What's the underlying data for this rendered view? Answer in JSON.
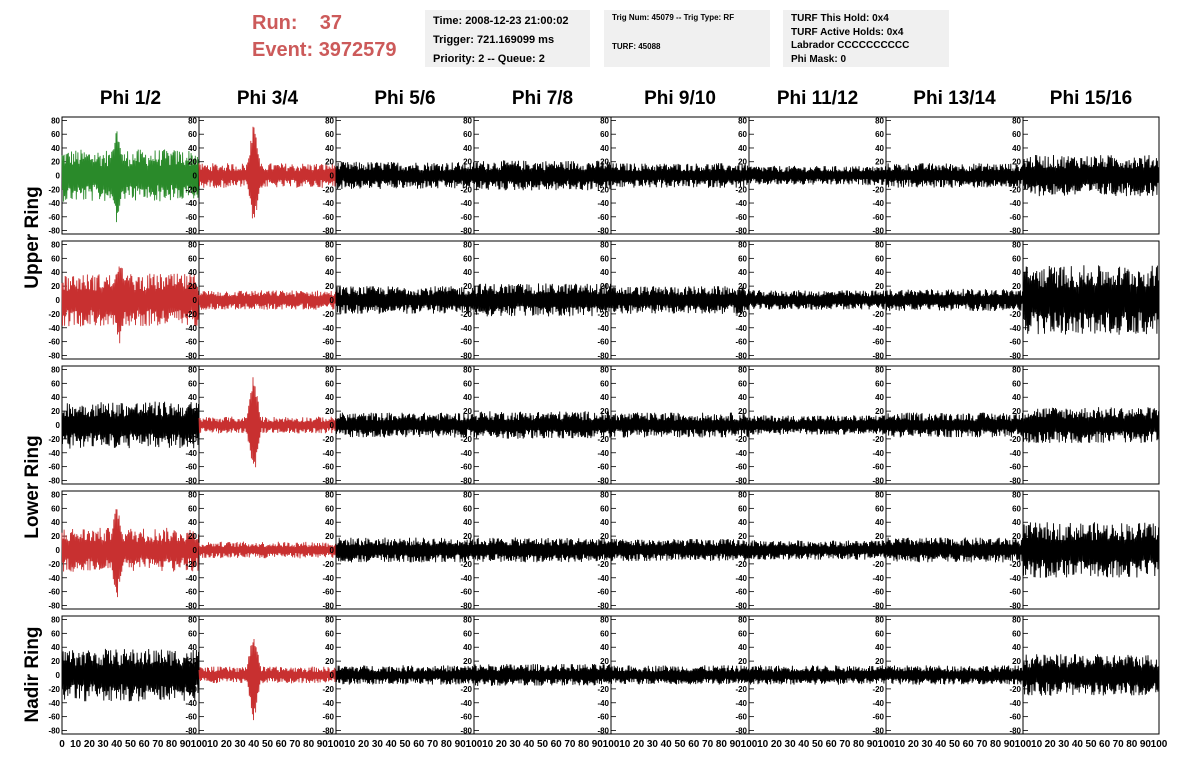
{
  "header": {
    "run_label": "Run:",
    "run_value": "37",
    "event_label": "Event:",
    "event_value": "3972579"
  },
  "info_boxes": [
    {
      "lines": [
        "Time: 2008-12-23 21:00:02",
        "Trigger: 721.169099 ms",
        "Priority: 2 -- Queue: 2"
      ]
    },
    {
      "lines": [
        "Trig Num: 45079 -- Trig Type: RF",
        "TURF: 45088"
      ]
    },
    {
      "lines": [
        "TURF This Hold: 0x4",
        "TURF Active Holds: 0x4",
        "Labrador CCCCCCCCCC",
        "Phi Mask: 0"
      ]
    }
  ],
  "colors": {
    "header_red": "#cc5a5a",
    "trace_green": "#2a8a2a",
    "trace_red": "#c83030",
    "trace_black": "#000000",
    "info_bg": "#f0f0f0"
  },
  "chart_data": {
    "type": "line",
    "columns": [
      "Phi 1/2",
      "Phi 3/4",
      "Phi 5/6",
      "Phi 7/8",
      "Phi 9/10",
      "Phi 11/12",
      "Phi 13/14",
      "Phi 15/16"
    ],
    "ring_labels": [
      {
        "text": "Upper Ring",
        "rows": [
          0,
          1
        ]
      },
      {
        "text": "Lower Ring",
        "rows": [
          2,
          3
        ]
      },
      {
        "text": "Nadir Ring",
        "rows": [
          4,
          4
        ]
      }
    ],
    "xlim": [
      0,
      100
    ],
    "ylim": [
      -85,
      85
    ],
    "y_ticks": [
      -80,
      -60,
      -40,
      -20,
      0,
      20,
      40,
      60,
      80
    ],
    "x_ticks": [
      0,
      10,
      20,
      30,
      40,
      50,
      60,
      70,
      80,
      90,
      100
    ],
    "samples": 260,
    "row_amplitudes": [
      [
        38,
        18,
        20,
        22,
        18,
        14,
        18,
        30
      ],
      [
        38,
        14,
        20,
        24,
        20,
        14,
        16,
        50
      ],
      [
        34,
        12,
        18,
        20,
        18,
        14,
        18,
        26
      ],
      [
        32,
        12,
        18,
        18,
        16,
        14,
        18,
        40
      ],
      [
        38,
        12,
        14,
        16,
        14,
        14,
        14,
        30
      ]
    ],
    "row_colors": [
      [
        "green",
        "red",
        "black",
        "black",
        "black",
        "black",
        "black",
        "black"
      ],
      [
        "red",
        "red",
        "black",
        "black",
        "black",
        "black",
        "black",
        "black"
      ],
      [
        "black",
        "red",
        "black",
        "black",
        "black",
        "black",
        "black",
        "black"
      ],
      [
        "red",
        "red",
        "black",
        "black",
        "black",
        "black",
        "black",
        "black"
      ],
      [
        "black",
        "red",
        "black",
        "black",
        "black",
        "black",
        "black",
        "black"
      ]
    ],
    "spike_channels": [
      {
        "row": 0,
        "col": 0,
        "x": 40,
        "peak": 75
      },
      {
        "row": 0,
        "col": 1,
        "x": 40,
        "peak": 80
      },
      {
        "row": 1,
        "col": 0,
        "x": 42,
        "peak": 70
      },
      {
        "row": 2,
        "col": 1,
        "x": 40,
        "peak": 80
      },
      {
        "row": 3,
        "col": 0,
        "x": 40,
        "peak": 75
      },
      {
        "row": 4,
        "col": 1,
        "x": 40,
        "peak": 70
      }
    ]
  }
}
